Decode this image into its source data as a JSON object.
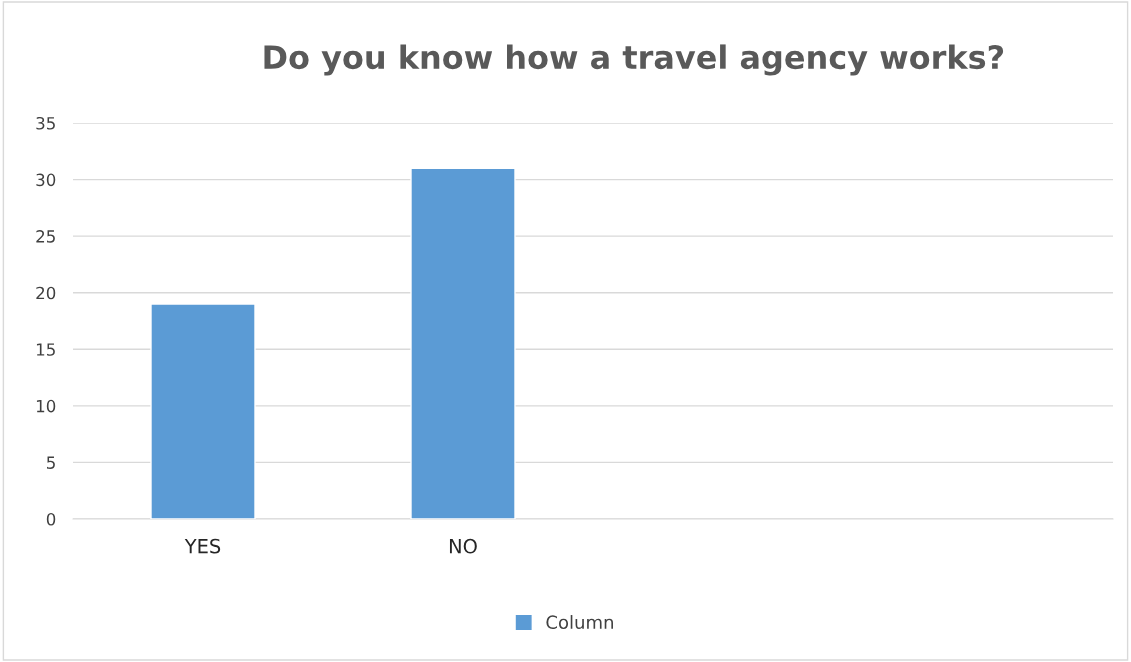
{
  "chart_data": {
    "type": "bar",
    "title": "Do you know how a travel agency works?",
    "categories": [
      "YES",
      "NO",
      null,
      null
    ],
    "series": [
      {
        "name": "Column",
        "color": "#5b9bd5",
        "values": [
          19,
          31,
          null,
          null
        ]
      }
    ],
    "ylim": [
      0,
      35
    ],
    "yticks": [
      0,
      5,
      10,
      15,
      20,
      25,
      30,
      35
    ],
    "grid": "y",
    "legend": "bottom"
  }
}
